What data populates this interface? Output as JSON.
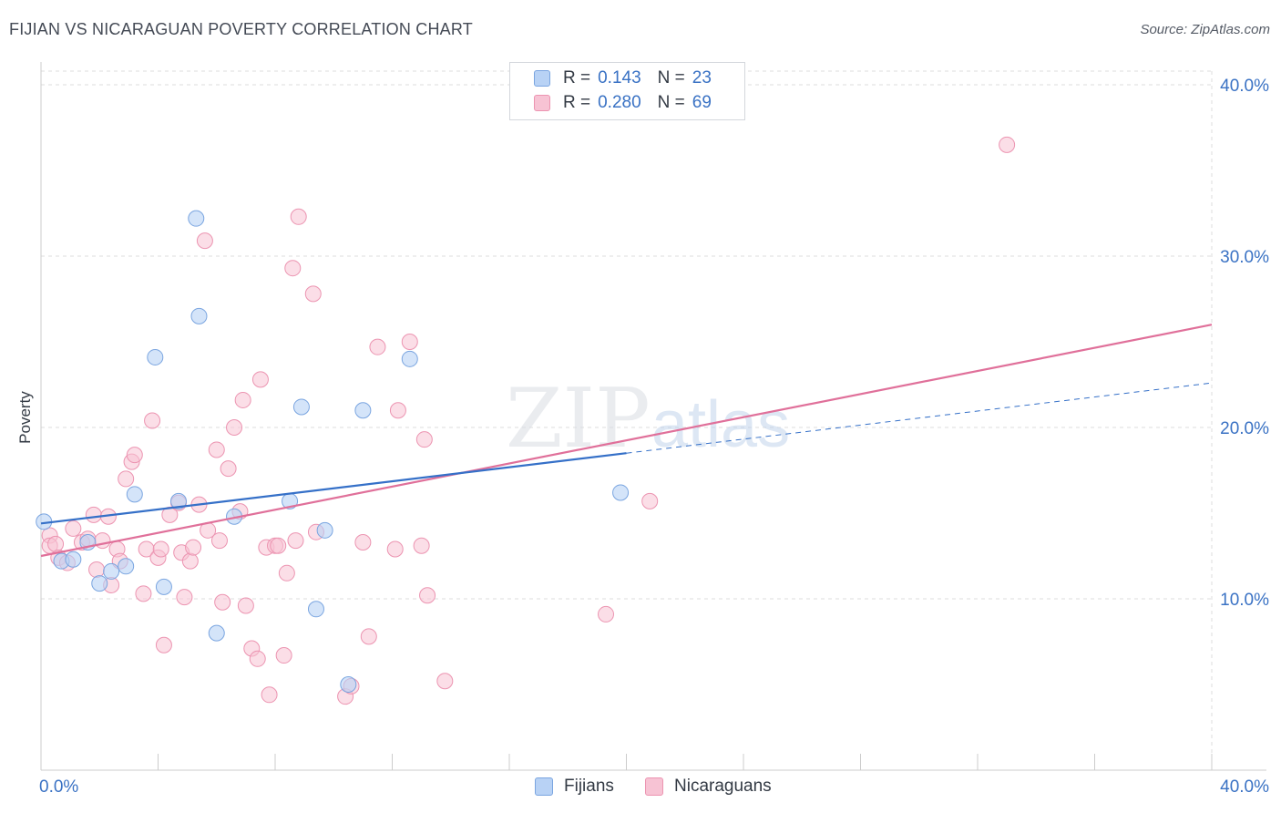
{
  "title": "FIJIAN VS NICARAGUAN POVERTY CORRELATION CHART",
  "source": "Source: ZipAtlas.com",
  "watermark": {
    "zip": "ZIP",
    "atlas": "atlas"
  },
  "colors": {
    "fijian_fill": "#b8d2f5",
    "fijian_stroke": "#7aa5e0",
    "fijian_line": "#3570c8",
    "nicaraguan_fill": "#f7c3d4",
    "nicaraguan_stroke": "#ec94b1",
    "nicaraguan_line": "#e0709a",
    "tick_label": "#3a72c4",
    "grid": "#dddddd"
  },
  "legend": {
    "rows": [
      {
        "r_label": "R =",
        "r_value": "0.143",
        "n_label": "N =",
        "n_value": "23"
      },
      {
        "r_label": "R =",
        "r_value": "0.280",
        "n_label": "N =",
        "n_value": "69"
      }
    ],
    "bottom": [
      "Fijians",
      "Nicaraguans"
    ]
  },
  "chart_data": {
    "type": "scatter",
    "title": "FIJIAN VS NICARAGUAN POVERTY CORRELATION CHART",
    "xlabel": "",
    "ylabel": "Poverty",
    "xlim": [
      0,
      40
    ],
    "ylim": [
      0,
      40.8
    ],
    "x_tick_labels": [
      "0.0%",
      "40.0%"
    ],
    "y_ticks": [
      10,
      20,
      30,
      40
    ],
    "y_tick_labels": [
      "10.0%",
      "20.0%",
      "30.0%",
      "40.0%"
    ],
    "grid": true,
    "legend_position": "top-center",
    "series": [
      {
        "name": "Fijians",
        "R": 0.143,
        "N": 23,
        "points": [
          [
            0.1,
            14.5
          ],
          [
            0.7,
            12.2
          ],
          [
            1.1,
            12.3
          ],
          [
            1.6,
            13.3
          ],
          [
            2.0,
            10.9
          ],
          [
            2.4,
            11.6
          ],
          [
            2.9,
            11.9
          ],
          [
            3.2,
            16.1
          ],
          [
            3.9,
            24.1
          ],
          [
            4.2,
            10.7
          ],
          [
            4.7,
            15.7
          ],
          [
            5.3,
            32.2
          ],
          [
            5.4,
            26.5
          ],
          [
            6.0,
            8.0
          ],
          [
            6.6,
            14.8
          ],
          [
            8.5,
            15.7
          ],
          [
            8.9,
            21.2
          ],
          [
            9.4,
            9.4
          ],
          [
            9.7,
            14.0
          ],
          [
            10.5,
            5.0
          ],
          [
            11.0,
            21.0
          ],
          [
            12.6,
            24.0
          ],
          [
            19.8,
            16.2
          ]
        ],
        "trend": {
          "x0": 0,
          "y0": 14.4,
          "x1": 20,
          "y1": 18.5,
          "dashed_to_x": 40,
          "dashed_to_y": 22.6
        }
      },
      {
        "name": "Nicaraguans",
        "R": 0.28,
        "N": 69,
        "points": [
          [
            0.3,
            13.7
          ],
          [
            0.3,
            13.1
          ],
          [
            0.5,
            13.2
          ],
          [
            0.6,
            12.4
          ],
          [
            0.9,
            12.1
          ],
          [
            1.1,
            14.1
          ],
          [
            1.4,
            13.3
          ],
          [
            1.6,
            13.5
          ],
          [
            1.8,
            14.9
          ],
          [
            1.9,
            11.7
          ],
          [
            2.1,
            13.4
          ],
          [
            2.3,
            14.8
          ],
          [
            2.4,
            10.8
          ],
          [
            2.6,
            12.9
          ],
          [
            2.7,
            12.2
          ],
          [
            2.9,
            17.0
          ],
          [
            3.1,
            18.0
          ],
          [
            3.2,
            18.4
          ],
          [
            3.5,
            10.3
          ],
          [
            3.6,
            12.9
          ],
          [
            3.8,
            20.4
          ],
          [
            4.0,
            12.4
          ],
          [
            4.1,
            12.9
          ],
          [
            4.2,
            7.3
          ],
          [
            4.4,
            14.9
          ],
          [
            4.7,
            15.6
          ],
          [
            4.8,
            12.7
          ],
          [
            4.9,
            10.1
          ],
          [
            5.1,
            12.2
          ],
          [
            5.2,
            13.0
          ],
          [
            5.4,
            15.5
          ],
          [
            5.6,
            30.9
          ],
          [
            5.7,
            14.0
          ],
          [
            6.0,
            18.7
          ],
          [
            6.1,
            13.4
          ],
          [
            6.2,
            9.8
          ],
          [
            6.4,
            17.6
          ],
          [
            6.6,
            20.0
          ],
          [
            6.8,
            15.1
          ],
          [
            6.9,
            21.6
          ],
          [
            7.0,
            9.6
          ],
          [
            7.2,
            7.1
          ],
          [
            7.4,
            6.5
          ],
          [
            7.5,
            22.8
          ],
          [
            7.7,
            13.0
          ],
          [
            7.8,
            4.4
          ],
          [
            8.0,
            13.1
          ],
          [
            8.1,
            13.1
          ],
          [
            8.3,
            6.7
          ],
          [
            8.4,
            11.5
          ],
          [
            8.6,
            29.3
          ],
          [
            8.7,
            13.4
          ],
          [
            8.8,
            32.3
          ],
          [
            9.3,
            27.8
          ],
          [
            9.4,
            13.9
          ],
          [
            10.4,
            4.3
          ],
          [
            10.6,
            4.9
          ],
          [
            11.0,
            13.3
          ],
          [
            11.2,
            7.8
          ],
          [
            11.5,
            24.7
          ],
          [
            12.1,
            12.9
          ],
          [
            12.2,
            21.0
          ],
          [
            12.6,
            25.0
          ],
          [
            13.0,
            13.1
          ],
          [
            13.1,
            19.3
          ],
          [
            13.2,
            10.2
          ],
          [
            13.8,
            5.2
          ],
          [
            19.3,
            9.1
          ],
          [
            20.8,
            15.7
          ],
          [
            33.0,
            36.5
          ]
        ],
        "trend": {
          "x0": 0,
          "y0": 12.5,
          "x1": 40,
          "y1": 26.0
        }
      }
    ]
  }
}
